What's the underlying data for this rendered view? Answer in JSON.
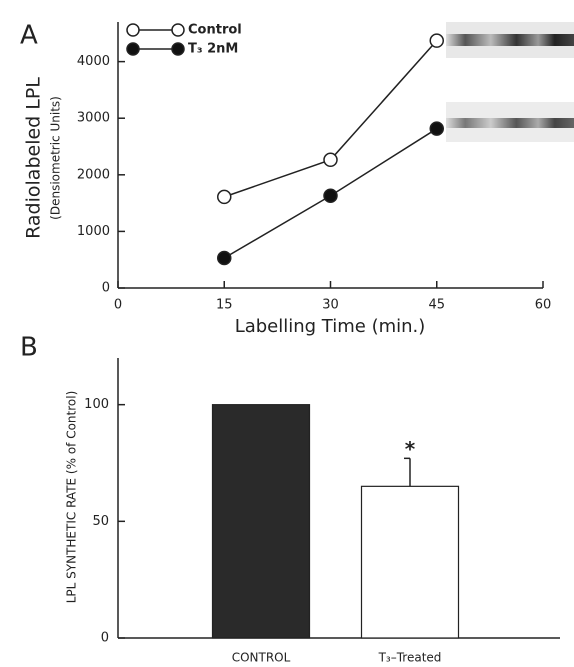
{
  "chart_data": [
    {
      "type": "line",
      "panel": "A",
      "ylabel": "Radiolabeled LPL",
      "ylabel_sub": "(Densiometric Units)",
      "xlabel": "Labelling Time (min.)",
      "x": [
        15,
        30,
        45
      ],
      "series": [
        {
          "name": "Control",
          "color": "#ffffff",
          "values": [
            1610,
            2265,
            4370
          ]
        },
        {
          "name": "T₃  2nM",
          "color": "#111111",
          "values": [
            530,
            1630,
            2815
          ]
        }
      ],
      "xlim": [
        0,
        60
      ],
      "xticks": [
        0,
        15,
        30,
        45,
        60
      ],
      "ylim": [
        0,
        4700
      ],
      "yticks": [
        0,
        1000,
        2000,
        3000,
        4000
      ]
    },
    {
      "type": "bar",
      "panel": "B",
      "ylabel": "LPL SYNTHETIC RATE (% of Control)",
      "categories": [
        "CONTROL",
        "T₃–Treated"
      ],
      "values": [
        100,
        65
      ],
      "errors": [
        null,
        12
      ],
      "colors": [
        "#2a2a2a",
        "#ffffff"
      ],
      "annotation": "*",
      "ylim": [
        0,
        120
      ],
      "yticks": [
        0,
        50,
        100
      ]
    }
  ]
}
